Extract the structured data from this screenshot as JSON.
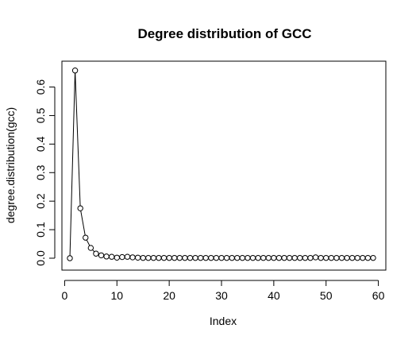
{
  "chart_data": {
    "type": "line",
    "title": "Degree distribution of GCC",
    "xlabel": "Index",
    "ylabel": "degree.distribution(gcc)",
    "xlim": [
      1,
      59
    ],
    "ylim": [
      0,
      0.66
    ],
    "x_ticks": [
      0,
      10,
      20,
      30,
      40,
      50,
      60
    ],
    "y_ticks": [
      0.0,
      0.1,
      0.2,
      0.3,
      0.4,
      0.5,
      0.6
    ],
    "x_tick_labels": [
      "0",
      "10",
      "20",
      "30",
      "40",
      "50",
      "60"
    ],
    "y_tick_labels": [
      "0.0",
      "0.1",
      "0.2",
      "0.3",
      "0.4",
      "0.5",
      "0.6"
    ],
    "grid": false,
    "legend": "none",
    "marker": "open-circle",
    "series": [
      {
        "x": [
          1,
          2,
          3,
          4,
          5,
          6,
          7,
          8,
          9,
          10,
          11,
          12,
          13,
          14,
          15,
          16,
          17,
          18,
          19,
          20,
          21,
          22,
          23,
          24,
          25,
          26,
          27,
          28,
          29,
          30,
          31,
          32,
          33,
          34,
          35,
          36,
          37,
          38,
          39,
          40,
          41,
          42,
          43,
          44,
          45,
          46,
          47,
          48,
          49,
          50,
          51,
          52,
          53,
          54,
          55,
          56,
          57,
          58,
          59
        ],
        "values": [
          0.0,
          0.658,
          0.175,
          0.072,
          0.036,
          0.016,
          0.01,
          0.006,
          0.005,
          0.002,
          0.004,
          0.005,
          0.003,
          0.002,
          0.001,
          0.001,
          0.001,
          0.001,
          0.001,
          0.001,
          0.001,
          0.001,
          0.001,
          0.001,
          0.001,
          0.001,
          0.001,
          0.001,
          0.001,
          0.001,
          0.001,
          0.001,
          0.001,
          0.001,
          0.001,
          0.001,
          0.001,
          0.001,
          0.001,
          0.001,
          0.001,
          0.001,
          0.001,
          0.001,
          0.001,
          0.001,
          0.001,
          0.003,
          0.001,
          0.001,
          0.001,
          0.001,
          0.001,
          0.001,
          0.001,
          0.001,
          0.001,
          0.001,
          0.001
        ],
        "color": "#000000"
      }
    ]
  }
}
